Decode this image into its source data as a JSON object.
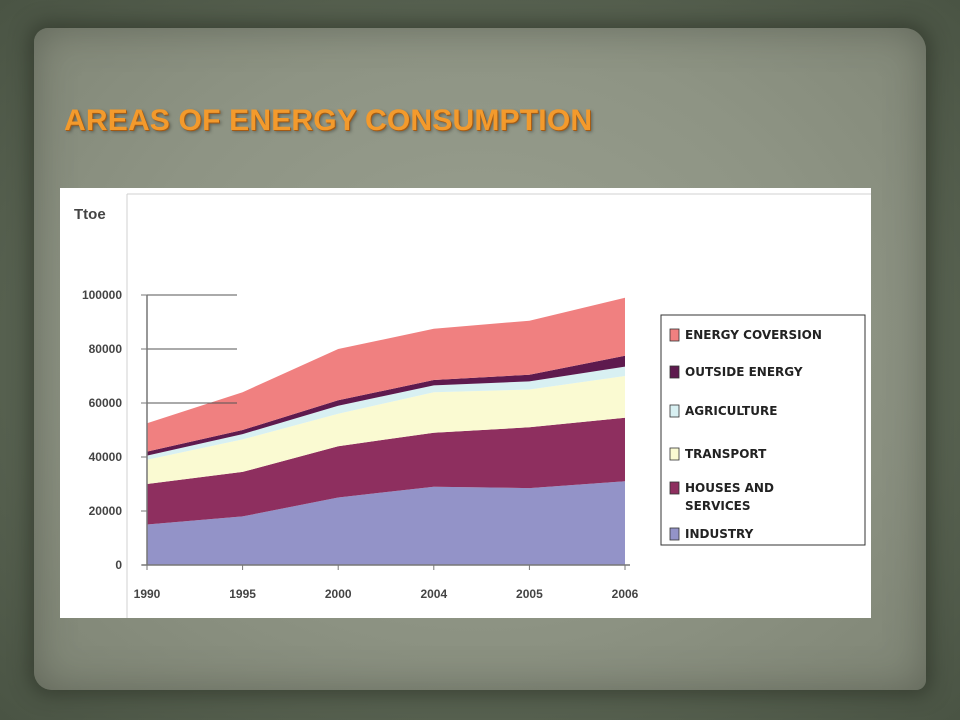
{
  "slide": {
    "title": "AREAS OF ENERGY CONSUMPTION"
  },
  "chart_data": {
    "type": "area",
    "stacked": true,
    "ylabel": "Ttoe",
    "categories": [
      "1990",
      "1995",
      "2000",
      "2004",
      "2005",
      "2006"
    ],
    "ylim": [
      0,
      100000
    ],
    "yticks": [
      "100000",
      "80000",
      "60000",
      "40000",
      "20000",
      "0"
    ],
    "legend_position": "right",
    "series": [
      {
        "name": "INDUSTRY",
        "color": "#9393c8",
        "values": [
          15000,
          18000,
          25000,
          29000,
          28500,
          31000
        ]
      },
      {
        "name": "HOUSES AND SERVICES",
        "color": "#8e2f5f",
        "values": [
          15000,
          16500,
          19000,
          20000,
          22500,
          23500
        ]
      },
      {
        "name": "TRANSPORT",
        "color": "#fafad2",
        "values": [
          9000,
          12000,
          12000,
          15000,
          14000,
          15500
        ]
      },
      {
        "name": "AGRICULTURE",
        "color": "#d8f0f2",
        "values": [
          1500,
          2000,
          3000,
          2500,
          3000,
          3500
        ]
      },
      {
        "name": "OUTSIDE ENERGY",
        "color": "#5e1a4e",
        "values": [
          1500,
          1500,
          2000,
          2000,
          2500,
          4000
        ]
      },
      {
        "name": "ENERGY COVERSION",
        "color": "#f08080",
        "values": [
          10500,
          14000,
          19000,
          19000,
          20000,
          21500
        ]
      }
    ],
    "legend_order": [
      "ENERGY COVERSION",
      "OUTSIDE ENERGY",
      "AGRICULTURE",
      "TRANSPORT",
      "HOUSES AND SERVICES",
      "INDUSTRY"
    ]
  }
}
